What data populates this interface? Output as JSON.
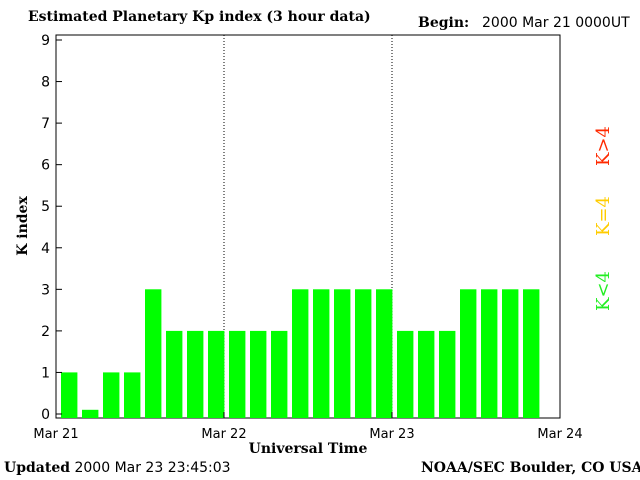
{
  "header": {
    "title": "Estimated Planetary Kp index (3 hour data)",
    "begin_label": "Begin:",
    "begin_value": "2000 Mar 21 0000UT"
  },
  "footer": {
    "updated_label": "Updated",
    "updated_value": "2000 Mar 23 23:45:03",
    "source": "NOAA/SEC Boulder, CO USA"
  },
  "legend": {
    "items": [
      {
        "label": "K>4",
        "color": "#ff2a00"
      },
      {
        "label": "K=4",
        "color": "#ffcc00"
      },
      {
        "label": "K<4",
        "color": "#22ee22"
      }
    ]
  },
  "chart_data": {
    "type": "bar",
    "title": "Estimated Planetary Kp index (3 hour data)",
    "xlabel": "Universal Time",
    "ylabel": "K index",
    "ylim": [
      0,
      9
    ],
    "yticks": [
      "0",
      "1",
      "2",
      "3",
      "4",
      "5",
      "6",
      "7",
      "8",
      "9"
    ],
    "xticks": [
      "Mar 21",
      "Mar 22",
      "Mar 23",
      "Mar 24"
    ],
    "bar_color": "#00ff00",
    "day_separators": true,
    "values": [
      1,
      0.1,
      1,
      1,
      3,
      2,
      2,
      2,
      2,
      2,
      2,
      3,
      3,
      3,
      3,
      3,
      2,
      2,
      2,
      3,
      3,
      3,
      3
    ]
  }
}
